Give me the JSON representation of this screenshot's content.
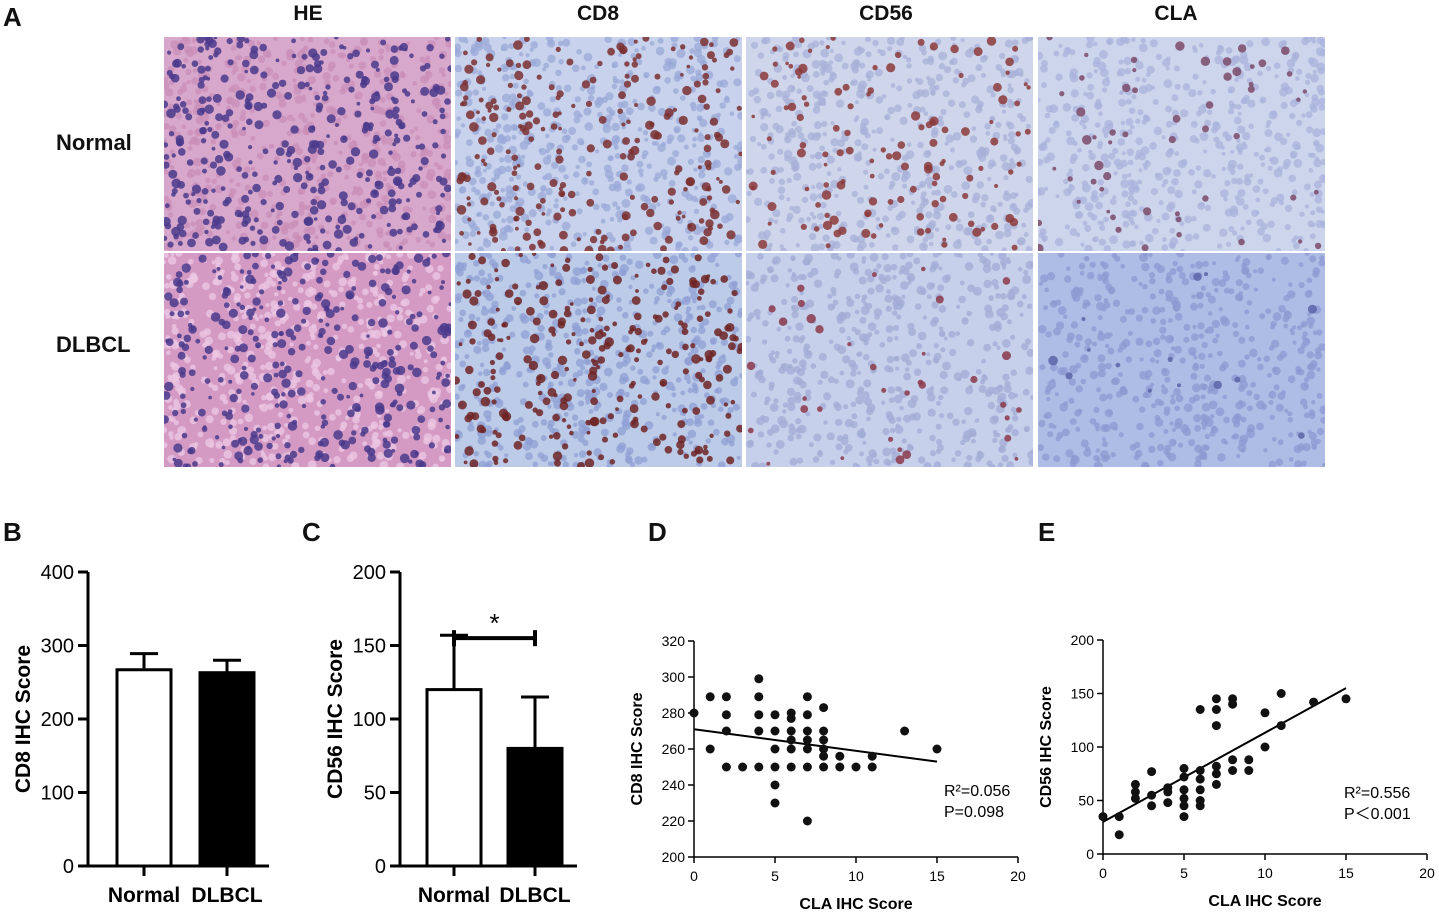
{
  "figure": {
    "panel_labels": [
      "A",
      "B",
      "C",
      "D",
      "E"
    ],
    "columns": [
      "HE",
      "CD8",
      "CD56",
      "CLA"
    ],
    "rows": [
      "Normal",
      "DLBCL"
    ],
    "micrographs": [
      {
        "row": "Normal",
        "col": "HE",
        "base": "#d8a8cc",
        "dot": "#4a3a8c",
        "accent": "#c98fb8",
        "density": 0.55
      },
      {
        "row": "Normal",
        "col": "CD8",
        "base": "#c8d2ec",
        "dot": "#7a3030",
        "accent": "#9aa8d8",
        "density": 0.35
      },
      {
        "row": "Normal",
        "col": "CD56",
        "base": "#cfd6ec",
        "dot": "#8b3a3a",
        "accent": "#a8b0d8",
        "density": 0.18
      },
      {
        "row": "Normal",
        "col": "CLA",
        "base": "#cdd5ec",
        "dot": "#7a4a6a",
        "accent": "#a9b3dc",
        "density": 0.08
      },
      {
        "row": "DLBCL",
        "col": "HE",
        "base": "#d49ac4",
        "dot": "#4a3a8c",
        "accent": "#ecc8e4",
        "density": 0.5
      },
      {
        "row": "DLBCL",
        "col": "CD8",
        "base": "#bccbe8",
        "dot": "#6e2424",
        "accent": "#8f9fd4",
        "density": 0.38
      },
      {
        "row": "DLBCL",
        "col": "CD56",
        "base": "#c7d0ea",
        "dot": "#8b3a4a",
        "accent": "#a2acd6",
        "density": 0.05
      },
      {
        "row": "DLBCL",
        "col": "CLA",
        "base": "#aebde6",
        "dot": "#5a64a8",
        "accent": "#8c9ad2",
        "density": 0.02
      }
    ]
  },
  "chart_data": [
    {
      "panel": "B",
      "type": "bar",
      "categories": [
        "Normal",
        "DLBCL"
      ],
      "values": [
        267,
        263
      ],
      "errors": [
        22,
        17
      ],
      "fills": [
        "#ffffff",
        "#000000"
      ],
      "ylabel": "CD8 IHC Score",
      "ylim": [
        0,
        400
      ],
      "yticks": [
        "0",
        "100",
        "200",
        "300",
        "400"
      ]
    },
    {
      "panel": "C",
      "type": "bar",
      "categories": [
        "Normal",
        "DLBCL"
      ],
      "values": [
        120,
        80
      ],
      "errors": [
        37,
        35
      ],
      "fills": [
        "#ffffff",
        "#000000"
      ],
      "ylabel": "CD56 IHC Score",
      "ylim": [
        0,
        200
      ],
      "yticks": [
        "0",
        "50",
        "100",
        "150",
        "200"
      ],
      "significance": "*"
    },
    {
      "panel": "D",
      "type": "scatter",
      "xlabel": "CLA IHC Score",
      "ylabel": "CD8 IHC Score",
      "xlim": [
        0,
        20
      ],
      "ylim": [
        200,
        320
      ],
      "xticks": [
        "0",
        "5",
        "10",
        "15",
        "20"
      ],
      "yticks": [
        "200",
        "220",
        "240",
        "260",
        "280",
        "300",
        "320"
      ],
      "annotation": [
        "R²=0.056",
        "P=0.098"
      ],
      "fit": {
        "x": [
          0,
          15
        ],
        "y": [
          271,
          253
        ]
      },
      "points": [
        [
          0,
          280
        ],
        [
          1,
          289
        ],
        [
          1,
          260
        ],
        [
          2,
          289
        ],
        [
          2,
          279
        ],
        [
          2,
          270
        ],
        [
          2,
          250
        ],
        [
          3,
          250
        ],
        [
          4,
          299
        ],
        [
          4,
          289
        ],
        [
          4,
          279
        ],
        [
          4,
          270
        ],
        [
          4,
          250
        ],
        [
          5,
          279
        ],
        [
          5,
          270
        ],
        [
          5,
          260
        ],
        [
          5,
          250
        ],
        [
          5,
          240
        ],
        [
          5,
          230
        ],
        [
          6,
          280
        ],
        [
          6,
          277
        ],
        [
          6,
          270
        ],
        [
          6,
          265
        ],
        [
          6,
          260
        ],
        [
          6,
          250
        ],
        [
          7,
          289
        ],
        [
          7,
          279
        ],
        [
          7,
          270
        ],
        [
          7,
          265
        ],
        [
          7,
          260
        ],
        [
          7,
          250
        ],
        [
          7,
          220
        ],
        [
          8,
          283
        ],
        [
          8,
          270
        ],
        [
          8,
          265
        ],
        [
          8,
          260
        ],
        [
          8,
          256
        ],
        [
          8,
          250
        ],
        [
          9,
          256
        ],
        [
          9,
          250
        ],
        [
          10,
          250
        ],
        [
          11,
          256
        ],
        [
          11,
          250
        ],
        [
          13,
          270
        ],
        [
          15,
          260
        ]
      ]
    },
    {
      "panel": "E",
      "type": "scatter",
      "xlabel": "CLA IHC Score",
      "ylabel": "CD56 IHC Score",
      "xlim": [
        0,
        20
      ],
      "ylim": [
        0,
        200
      ],
      "xticks": [
        "0",
        "5",
        "10",
        "15",
        "20"
      ],
      "yticks": [
        "0",
        "50",
        "100",
        "150",
        "200"
      ],
      "annotation": [
        "R²=0.556",
        "P＜0.001"
      ],
      "fit": {
        "x": [
          0,
          15
        ],
        "y": [
          30,
          155
        ]
      },
      "points": [
        [
          0,
          35
        ],
        [
          1,
          35
        ],
        [
          1,
          18
        ],
        [
          2,
          65
        ],
        [
          2,
          58
        ],
        [
          2,
          52
        ],
        [
          3,
          77
        ],
        [
          3,
          55
        ],
        [
          3,
          45
        ],
        [
          4,
          62
        ],
        [
          4,
          58
        ],
        [
          4,
          48
        ],
        [
          5,
          80
        ],
        [
          5,
          72
        ],
        [
          5,
          60
        ],
        [
          5,
          52
        ],
        [
          5,
          45
        ],
        [
          5,
          35
        ],
        [
          6,
          135
        ],
        [
          6,
          78
        ],
        [
          6,
          70
        ],
        [
          6,
          60
        ],
        [
          6,
          50
        ],
        [
          6,
          45
        ],
        [
          7,
          145
        ],
        [
          7,
          135
        ],
        [
          7,
          120
        ],
        [
          7,
          82
        ],
        [
          7,
          75
        ],
        [
          7,
          65
        ],
        [
          8,
          145
        ],
        [
          8,
          140
        ],
        [
          8,
          88
        ],
        [
          8,
          78
        ],
        [
          9,
          88
        ],
        [
          9,
          78
        ],
        [
          10,
          132
        ],
        [
          10,
          100
        ],
        [
          11,
          150
        ],
        [
          11,
          120
        ],
        [
          13,
          142
        ],
        [
          15,
          145
        ]
      ]
    }
  ]
}
